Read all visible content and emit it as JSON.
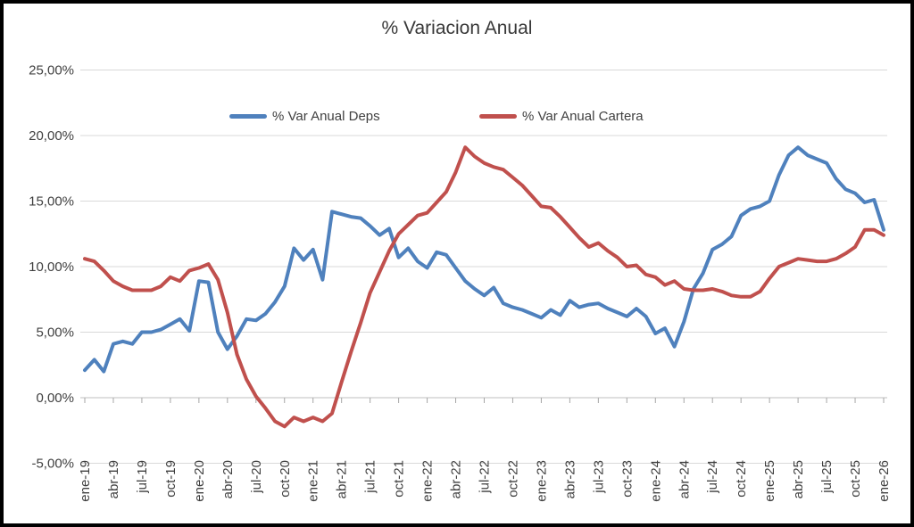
{
  "chart_data": {
    "type": "line",
    "title": "% Variacion Anual",
    "xlabel": "",
    "ylabel": "",
    "ylim": [
      -5,
      25
    ],
    "y_tick_values": [
      25,
      20,
      15,
      10,
      5,
      0,
      -5
    ],
    "y_tick_labels": [
      "25,00%",
      "20,00%",
      "15,00%",
      "10,00%",
      "5,00%",
      "0,00%",
      "-5,00%"
    ],
    "x_is_monthly_from": "ene-19",
    "x_tick_every_months": 3,
    "x_tick_labels": [
      "ene-19",
      "abr-19",
      "jul-19",
      "oct-19",
      "ene-20",
      "abr-20",
      "jul-20",
      "oct-20",
      "ene-21",
      "abr-21",
      "jul-21",
      "oct-21",
      "ene-22",
      "abr-22",
      "jul-22",
      "oct-22",
      "ene-23",
      "abr-23",
      "jul-23",
      "oct-23",
      "ene-24",
      "abr-24",
      "jul-24",
      "oct-24",
      "ene-25",
      "abr-25",
      "jul-25",
      "oct-25",
      "ene-26"
    ],
    "grid": true,
    "legend_position": "top-inside",
    "series": [
      {
        "name": "% Var Anual Deps",
        "color": "#4F81BD",
        "values": [
          2.1,
          2.9,
          2.0,
          4.1,
          4.3,
          4.1,
          5.0,
          5.0,
          5.2,
          5.6,
          6.0,
          5.1,
          8.9,
          8.8,
          5.0,
          3.7,
          4.7,
          6.0,
          5.9,
          6.4,
          7.3,
          8.5,
          11.4,
          10.5,
          11.3,
          9.0,
          14.2,
          14.0,
          13.8,
          13.7,
          13.1,
          12.4,
          12.9,
          10.7,
          11.4,
          10.4,
          9.9,
          11.1,
          10.9,
          9.9,
          8.9,
          8.3,
          7.8,
          8.4,
          7.2,
          6.9,
          6.7,
          6.4,
          6.1,
          6.7,
          6.3,
          7.4,
          6.9,
          7.1,
          7.2,
          6.8,
          6.5,
          6.2,
          6.8,
          6.2,
          4.9,
          5.3,
          3.9,
          5.8,
          8.3,
          9.5,
          11.3,
          11.7,
          12.3,
          13.9,
          14.4,
          14.6,
          15.0,
          17.0,
          18.5,
          19.1,
          18.5,
          18.2,
          17.9,
          16.7,
          15.9,
          15.6,
          14.9,
          15.1,
          12.8
        ]
      },
      {
        "name": "% Var Anual Cartera",
        "color": "#C0504D",
        "values": [
          10.6,
          10.4,
          9.7,
          8.9,
          8.5,
          8.2,
          8.2,
          8.2,
          8.5,
          9.2,
          8.9,
          9.7,
          9.9,
          10.2,
          9.0,
          6.5,
          3.3,
          1.4,
          0.1,
          -0.8,
          -1.8,
          -2.2,
          -1.5,
          -1.8,
          -1.5,
          -1.8,
          -1.2,
          1.2,
          3.5,
          5.7,
          8.0,
          9.6,
          11.2,
          12.5,
          13.2,
          13.9,
          14.1,
          14.9,
          15.7,
          17.2,
          19.1,
          18.4,
          17.9,
          17.6,
          17.4,
          16.8,
          16.2,
          15.4,
          14.6,
          14.5,
          13.8,
          13.0,
          12.2,
          11.5,
          11.8,
          11.2,
          10.7,
          10.0,
          10.1,
          9.4,
          9.2,
          8.6,
          8.9,
          8.3,
          8.2,
          8.2,
          8.3,
          8.1,
          7.8,
          7.7,
          7.7,
          8.1,
          9.1,
          10.0,
          10.3,
          10.6,
          10.5,
          10.4,
          10.4,
          10.6,
          11.0,
          11.5,
          12.8,
          12.8,
          12.4
        ]
      }
    ],
    "colors": {
      "grid": "#d9d9d9",
      "axis": "#bfbfbf",
      "tick": "#a6a6a6",
      "label_text": "#404040",
      "title_text": "#383838",
      "background": "#ffffff",
      "frame_border": "#000000"
    }
  }
}
